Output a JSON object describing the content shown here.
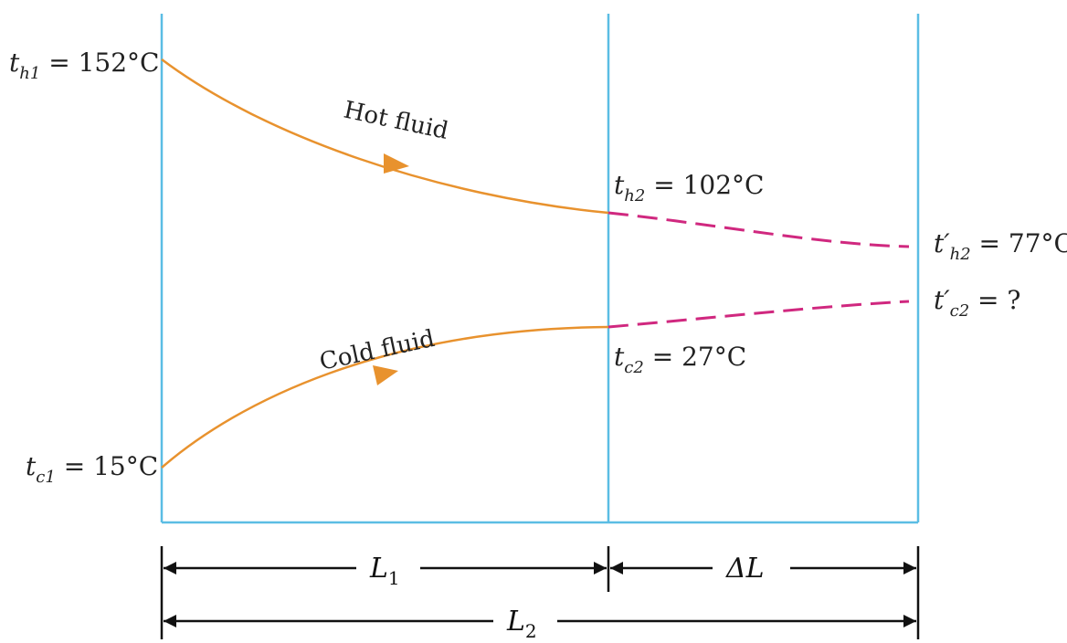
{
  "labels": {
    "th1": {
      "sym": "t",
      "sub": "h1",
      "val": " = 152°C"
    },
    "th2": {
      "sym": "t",
      "sub": "h2",
      "val": " = 102°C"
    },
    "th2p": {
      "sym": "t′",
      "sub": "h2",
      "val": " = 77°C"
    },
    "tc1": {
      "sym": "t",
      "sub": "c1",
      "val": " = 15°C"
    },
    "tc2": {
      "sym": "t",
      "sub": "c2",
      "val": " = 27°C"
    },
    "tc2p": {
      "sym": "t′",
      "sub": "c2",
      "val": " = ?"
    },
    "hot": "Hot fluid",
    "cold": "Cold fluid"
  },
  "dimensions": {
    "L1": {
      "sym": "L",
      "sub": "1"
    },
    "dL": "ΔL",
    "L2": {
      "sym": "L",
      "sub": "2"
    }
  },
  "colors": {
    "boundary": "#5bbde4",
    "fluid_curve": "#e8922e",
    "extension": "#d0287f",
    "dimension": "#111111"
  }
}
